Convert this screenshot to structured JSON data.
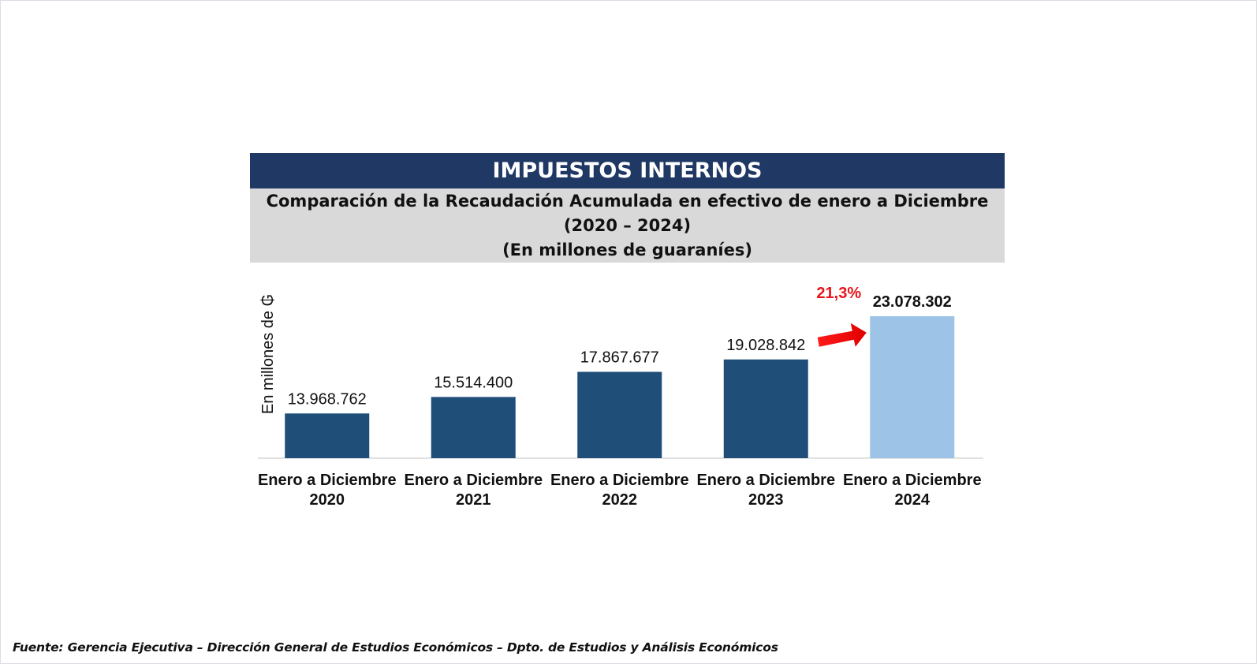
{
  "header": {
    "title": "IMPUESTOS INTERNOS",
    "subtitle_line1": "Comparación de la Recaudación Acumulada en efectivo de enero a Diciembre",
    "subtitle_line2": "(2020 – 2024)",
    "subtitle_line3": "(En millones de guaraníes)"
  },
  "chart_data": {
    "type": "bar",
    "title": "",
    "xlabel": "",
    "ylabel": "En millones de ₲",
    "categories": [
      [
        "Enero a Diciembre",
        "2020"
      ],
      [
        "Enero a Diciembre",
        "2021"
      ],
      [
        "Enero a Diciembre",
        "2022"
      ],
      [
        "Enero a Diciembre",
        "2023"
      ],
      [
        "Enero a Diciembre",
        "2024"
      ]
    ],
    "values": [
      13968762,
      15514400,
      17867677,
      19028842,
      23078302
    ],
    "data_labels": [
      "13.968.762",
      "15.514.400",
      "17.867.677",
      "19.028.842",
      "23.078.302"
    ],
    "bar_colors": [
      "#1f4e79",
      "#1f4e79",
      "#1f4e79",
      "#1f4e79",
      "#9dc3e6"
    ],
    "highlight_index": 4,
    "growth_annotation": {
      "text": "21,3%",
      "color": "#e8141b"
    },
    "grid": false,
    "legend": "none"
  },
  "footer": {
    "source": "Fuente: Gerencia Ejecutiva – Dirección General de Estudios Económicos – Dpto. de Estudios y Análisis Económicos"
  }
}
